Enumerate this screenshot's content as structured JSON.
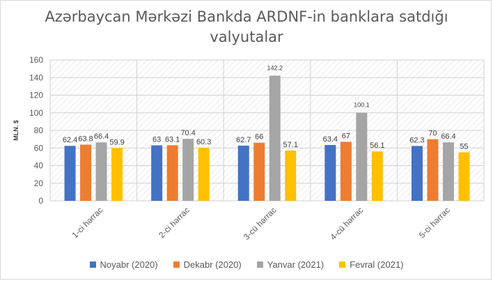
{
  "chart_data": {
    "type": "bar",
    "title_line1": "Azərbaycan Mərkəzi Bankda ARDNF-in banklara satdığı",
    "title_line2": "valyutalar",
    "ylabel": "MLN. $",
    "ylim": [
      0,
      160
    ],
    "yticks": [
      0,
      20,
      40,
      60,
      80,
      100,
      120,
      140,
      160
    ],
    "categories": [
      "1-ci hərrac",
      "2-ci hərrac",
      "3-cü hərrac",
      "4-cü hərrac",
      "5-ci hərrac"
    ],
    "series": [
      {
        "name": "Noyabr (2020)",
        "color": "#4472c4",
        "values": [
          62.4,
          63,
          62.7,
          63.4,
          62.3
        ],
        "labels": [
          "62.4",
          "63",
          "62.7",
          "63.4",
          "62.3"
        ]
      },
      {
        "name": "Dekabr (2020)",
        "color": "#ed7d31",
        "values": [
          63.8,
          63.1,
          66,
          67,
          70
        ],
        "labels": [
          "63.8",
          "63.1",
          "66",
          "67",
          "70"
        ]
      },
      {
        "name": "Yanvar (2021)",
        "color": "#a5a5a5",
        "values": [
          66.4,
          70.4,
          142.2,
          100.1,
          66.4
        ],
        "labels": [
          "66.4",
          "70.4",
          "142.2",
          "100.1",
          "66.4"
        ]
      },
      {
        "name": "Fevral (2021)",
        "color": "#ffc000",
        "values": [
          59.9,
          60.3,
          57.1,
          56.1,
          55
        ],
        "labels": [
          "59.9",
          "60.3",
          "57.1",
          "56.1",
          "55"
        ]
      }
    ],
    "grid": true,
    "legend_position": "bottom"
  }
}
